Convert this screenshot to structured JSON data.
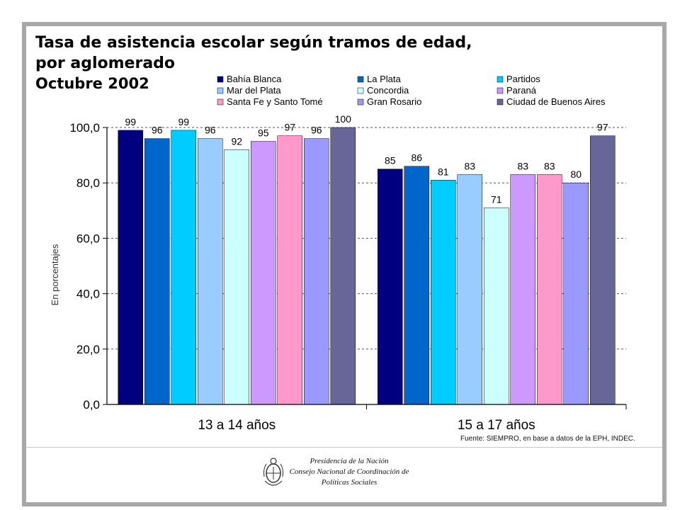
{
  "title": {
    "line1": "Tasa de asistencia escolar según tramos de edad,",
    "line2": "por aglomerado",
    "line3": "Octubre 2002"
  },
  "source": "Fuente: SIEMPRO, en base a datos de la EPH, INDEC.",
  "institution": {
    "line1": "Presidencia de la Nación",
    "line2": "Consejo Nacional de Coordinación de",
    "line3": "Políticas Sociales"
  },
  "chart_data": {
    "type": "bar",
    "categories": [
      "13 a 14 años",
      "15 a 17 años"
    ],
    "ylabel": "En porcentajes",
    "ylim": [
      0,
      100
    ],
    "yticks": [
      "0,0",
      "20,0",
      "40,0",
      "60,0",
      "80,0",
      "100,0"
    ],
    "grid": true,
    "legend_position": "top-right",
    "series": [
      {
        "name": "Bahía Blanca",
        "color": "#000080",
        "values": [
          99,
          85
        ]
      },
      {
        "name": "La Plata",
        "color": "#0066cc",
        "values": [
          96,
          86
        ]
      },
      {
        "name": "Partidos",
        "color": "#00ccff",
        "values": [
          99,
          81
        ]
      },
      {
        "name": "Mar del Plata",
        "color": "#99ccff",
        "values": [
          96,
          83
        ]
      },
      {
        "name": "Concordia",
        "color": "#ccffff",
        "values": [
          92,
          71
        ]
      },
      {
        "name": "Paraná",
        "color": "#cc99ff",
        "values": [
          95,
          83
        ]
      },
      {
        "name": "Santa Fe y Santo Tomé",
        "color": "#ff99cc",
        "values": [
          97,
          83
        ]
      },
      {
        "name": "Gran Rosario",
        "color": "#9999ff",
        "values": [
          96,
          80
        ]
      },
      {
        "name": "Ciudad de Buenos Aires",
        "color": "#666699",
        "values": [
          100,
          97
        ]
      }
    ]
  }
}
